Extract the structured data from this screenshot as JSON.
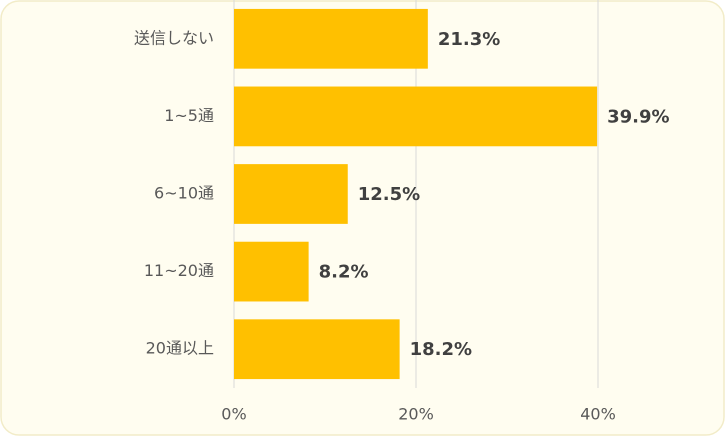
{
  "chart_data": {
    "type": "bar",
    "orientation": "horizontal",
    "categories": [
      "送信しない",
      "1~5通",
      "6~10通",
      "11~20通",
      "20通以上"
    ],
    "values": [
      21.3,
      39.9,
      12.5,
      8.2,
      18.2
    ],
    "value_labels": [
      "21.3%",
      "39.9%",
      "12.5%",
      "8.2%",
      "18.2%"
    ],
    "color": "#ffc000",
    "xlim": [
      0,
      50
    ],
    "xticks": [
      {
        "value": 0,
        "label": "0%"
      },
      {
        "value": 20,
        "label": "20%"
      },
      {
        "value": 40,
        "label": "40%"
      }
    ],
    "grid": true
  }
}
